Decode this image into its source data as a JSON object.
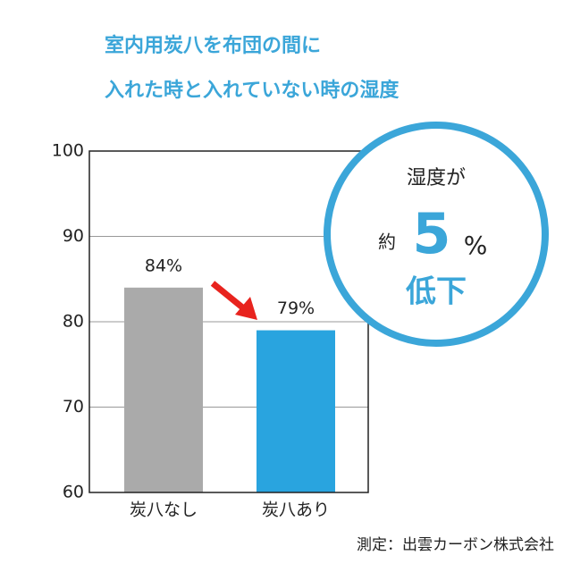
{
  "chart_data": {
    "type": "bar",
    "title": [
      "室内用炭八を布団の間に",
      "入れた時と入れていない時の湿度"
    ],
    "categories": [
      "炭八なし",
      "炭八あり"
    ],
    "values": [
      84,
      79
    ],
    "value_labels": [
      "84%",
      "79%"
    ],
    "colors": [
      "#aaaaaa",
      "#29a4df"
    ],
    "ylim": [
      60,
      100
    ],
    "yticks": [
      60,
      70,
      80,
      90,
      100
    ],
    "grid": true,
    "annotation": {
      "line1": "湿度が",
      "prefix": "約",
      "number": "5",
      "unit": "%",
      "line3": "低下"
    },
    "source": "測定：出雲カーボン株式会社"
  }
}
